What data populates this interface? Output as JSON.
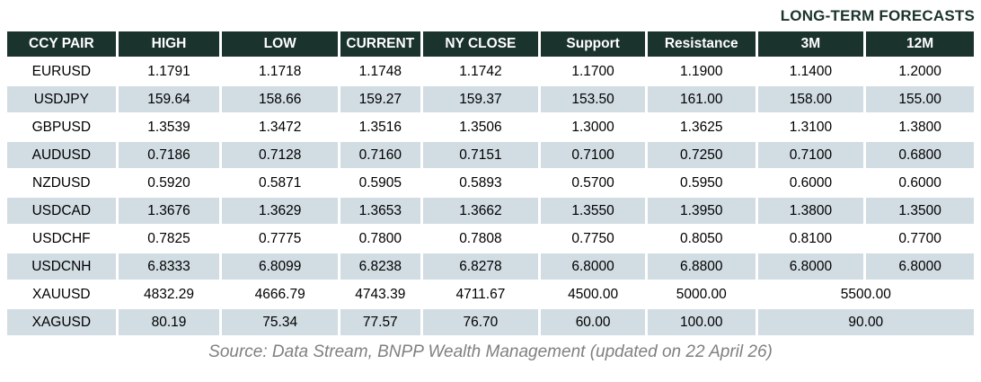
{
  "title": "LONG-TERM FORECASTS",
  "source_note": "Source: Data Stream, BNPP Wealth Management (updated on 22 April 26)",
  "colors": {
    "header_bg": "#1b332d",
    "header_text": "#ffffff",
    "row_bg": "#ffffff",
    "row_alt_bg": "#d1dce3",
    "title_color": "#1b332d",
    "source_color": "#808080"
  },
  "chart_data": {
    "type": "table",
    "title": "LONG-TERM FORECASTS",
    "columns": [
      "CCY PAIR",
      "HIGH",
      "LOW",
      "CURRENT",
      "NY CLOSE",
      "Support",
      "Resistance",
      "3M",
      "12M"
    ],
    "rows": [
      {
        "pair": "EURUSD",
        "values": [
          "1.1791",
          "1.1718",
          "1.1748",
          "1.1742",
          "1.1700",
          "1.1900",
          "1.1400",
          "1.2000"
        ]
      },
      {
        "pair": "USDJPY",
        "values": [
          "159.64",
          "158.66",
          "159.27",
          "159.37",
          "153.50",
          "161.00",
          "158.00",
          "155.00"
        ]
      },
      {
        "pair": "GBPUSD",
        "values": [
          "1.3539",
          "1.3472",
          "1.3516",
          "1.3506",
          "1.3000",
          "1.3625",
          "1.3100",
          "1.3800"
        ]
      },
      {
        "pair": "AUDUSD",
        "values": [
          "0.7186",
          "0.7128",
          "0.7160",
          "0.7151",
          "0.7100",
          "0.7250",
          "0.7100",
          "0.6800"
        ]
      },
      {
        "pair": "NZDUSD",
        "values": [
          "0.5920",
          "0.5871",
          "0.5905",
          "0.5893",
          "0.5700",
          "0.5950",
          "0.6000",
          "0.6000"
        ]
      },
      {
        "pair": "USDCAD",
        "values": [
          "1.3676",
          "1.3629",
          "1.3653",
          "1.3662",
          "1.3550",
          "1.3950",
          "1.3800",
          "1.3500"
        ]
      },
      {
        "pair": "USDCHF",
        "values": [
          "0.7825",
          "0.7775",
          "0.7800",
          "0.7808",
          "0.7750",
          "0.8050",
          "0.8100",
          "0.7700"
        ]
      },
      {
        "pair": "USDCNH",
        "values": [
          "6.8333",
          "6.8099",
          "6.8238",
          "6.8278",
          "6.8000",
          "6.8800",
          "6.8000",
          "6.8000"
        ]
      },
      {
        "pair": "XAUUSD",
        "values": [
          "4832.29",
          "4666.79",
          "4743.39",
          "4711.67",
          "4500.00",
          "5000.00"
        ],
        "forecast_merged": "5500.00"
      },
      {
        "pair": "XAGUSD",
        "values": [
          "80.19",
          "75.34",
          "77.57",
          "76.70",
          "60.00",
          "100.00"
        ],
        "forecast_merged": "90.00"
      }
    ]
  }
}
